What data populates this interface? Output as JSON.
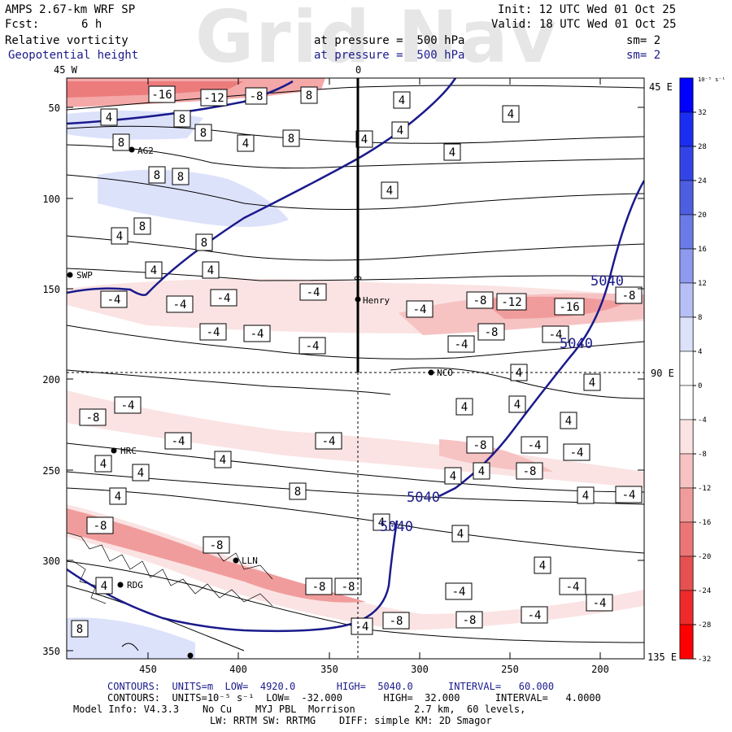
{
  "header": {
    "model_line": "AMPS 2.67-km WRF SP",
    "init_line": "Init: 12 UTC Wed 01 Oct 25",
    "fcst_label": "Fcst:",
    "fcst_value": "6 h",
    "valid_line": "Valid: 18 UTC Wed 01 Oct 25",
    "field1": "Relative vorticity",
    "field1_level": "at pressure =  500 hPa",
    "field1_sm": "sm= 2",
    "field2": "Geopotential height",
    "field2_level": "at pressure =  500 hPa",
    "field2_sm": "sm= 2",
    "watermark": "Grid Nav"
  },
  "map": {
    "lon_label_left": "45 W",
    "lon_label_top": "0",
    "lon_label_right_top": "45 E",
    "lon_label_right_mid": "90 E",
    "lon_label_right_bottom": "135 E",
    "y_ticks": [
      "50",
      "100",
      "150",
      "200",
      "250",
      "300",
      "350"
    ],
    "x_ticks": [
      "450",
      "400",
      "350",
      "300",
      "250",
      "200"
    ],
    "stations": [
      "AG2",
      "SWP",
      "Henry",
      "NCO",
      "HRC",
      "LLN",
      "RDG"
    ],
    "height_labels": [
      "5040",
      "5040",
      "5040",
      "5040"
    ],
    "vort_labels_pos": [
      "8",
      "4",
      "8",
      "8",
      "8",
      "8",
      "4",
      "4",
      "4",
      "4",
      "4",
      "4",
      "4",
      "8",
      "4",
      "4",
      "4",
      "4",
      "4",
      "4",
      "4",
      "4",
      "4",
      "4",
      "4",
      "4",
      "4",
      "4",
      "4",
      "4",
      "4",
      "4",
      "8",
      "4",
      "4",
      "4",
      "4",
      "4",
      "4",
      "8"
    ],
    "vort_labels_neg": [
      "-16",
      "-12",
      "-8",
      "-4",
      "-4",
      "-4",
      "-4",
      "-4",
      "-4",
      "-4",
      "-8",
      "-12",
      "-16",
      "-8",
      "-8",
      "-4",
      "-4",
      "-4",
      "-8",
      "-4",
      "-4",
      "-4",
      "-8",
      "-4",
      "-4",
      "-8",
      "-4",
      "-8",
      "-8",
      "-8",
      "-8",
      "-4",
      "-4",
      "-4",
      "-8",
      "-4",
      "-4"
    ]
  },
  "colorbar": {
    "unit": "10⁻⁵ s⁻¹",
    "labels": [
      "32",
      "28",
      "24",
      "20",
      "16",
      "12",
      "8",
      "4",
      "0",
      "-4",
      "-8",
      "-12",
      "-16",
      "-20",
      "-24",
      "-28",
      "-32"
    ],
    "colors": [
      "#0000ff",
      "#1a2ef2",
      "#3344e6",
      "#4d5ee0",
      "#6a7ae6",
      "#8d9aee",
      "#b7c0f6",
      "#dde2fb",
      "#ffffff",
      "#ffffff",
      "#fbe3e3",
      "#f6c2c2",
      "#f19c9c",
      "#ec7676",
      "#e65050",
      "#ee2a2a",
      "#ff0000"
    ]
  },
  "footer": {
    "line1_label": "CONTOURS:  UNITS=m  LOW=  4920.0       HIGH=  5040.0      INTERVAL=   60.000",
    "line2_label": "CONTOURS:  UNITS=10⁻⁵ s⁻¹  LOW=  -32.000       HIGH=  32.000      INTERVAL=   4.0000",
    "line3": "Model Info: V4.3.3    No Cu    MYJ PBL  Morrison          2.7 km,  60 levels,",
    "line4": "LW: RRTM SW: RRTMG    DIFF: simple KM: 2D Smagor"
  }
}
